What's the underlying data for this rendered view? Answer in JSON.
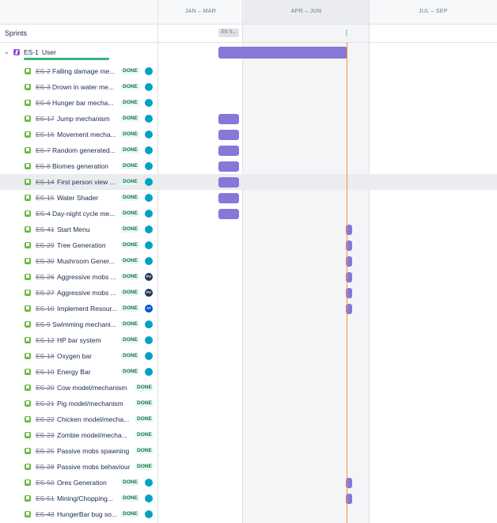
{
  "timeline": {
    "quarters": [
      "JAN – MAR",
      "APR – JUN",
      "JUL – SEP"
    ],
    "sprints_label": "Sprints",
    "sprint_chip": "ES S..."
  },
  "epic": {
    "key": "ES-1",
    "summary": "User",
    "progress_fraction": 1.0
  },
  "colors": {
    "bar": "#8777d9",
    "today_line": "#f79232",
    "story_icon": "#63ba3c",
    "epic_icon": "#904ee2",
    "done_badge_text": "#216e4e",
    "done_badge_bg": "#e3fcef"
  },
  "issues": [
    {
      "key": "ES-2",
      "summary": "Falling damage me...",
      "status": "DONE",
      "avatar": {
        "icon": "user-icon",
        "initials": "",
        "color": "#00a3bf"
      },
      "bar": null
    },
    {
      "key": "ES-3",
      "summary": "Drown in water me...",
      "status": "DONE",
      "avatar": {
        "icon": "user-icon",
        "initials": "",
        "color": "#00a3bf"
      },
      "bar": null
    },
    {
      "key": "ES-6",
      "summary": "Hunger bar mecha...",
      "status": "DONE",
      "avatar": {
        "icon": "user-icon",
        "initials": "",
        "color": "#00a3bf"
      },
      "bar": null
    },
    {
      "key": "ES-17",
      "summary": "Jump mechanism",
      "status": "DONE",
      "avatar": {
        "icon": "user-icon",
        "initials": "",
        "color": "#00a3bf"
      },
      "bar": "jan"
    },
    {
      "key": "ES-16",
      "summary": "Movement mecha...",
      "status": "DONE",
      "avatar": {
        "icon": "user-icon",
        "initials": "",
        "color": "#00a3bf"
      },
      "bar": "jan"
    },
    {
      "key": "ES-7",
      "summary": "Random generated...",
      "status": "DONE",
      "avatar": {
        "icon": "user-icon",
        "initials": "",
        "color": "#00a3bf"
      },
      "bar": "jan"
    },
    {
      "key": "ES-8",
      "summary": "Biomes generation",
      "status": "DONE",
      "avatar": {
        "icon": "user-icon",
        "initials": "",
        "color": "#00a3bf"
      },
      "bar": "jan"
    },
    {
      "key": "ES-14",
      "summary": "First person view ...",
      "status": "DONE",
      "avatar": {
        "icon": "user-icon",
        "initials": "",
        "color": "#00a3bf"
      },
      "bar": "jan",
      "highlight": true
    },
    {
      "key": "ES-15",
      "summary": "Water Shader",
      "status": "DONE",
      "avatar": {
        "icon": "user-icon",
        "initials": "",
        "color": "#00a3bf"
      },
      "bar": "jan"
    },
    {
      "key": "ES-4",
      "summary": "Day-night cycle me...",
      "status": "DONE",
      "avatar": {
        "icon": "user-icon",
        "initials": "",
        "color": "#00a3bf"
      },
      "bar": "jan"
    },
    {
      "key": "ES-41",
      "summary": "Start Menu",
      "status": "DONE",
      "avatar": {
        "icon": "user-icon",
        "initials": "",
        "color": "#00a3bf"
      },
      "bar": "jun"
    },
    {
      "key": "ES-29",
      "summary": "Tree Generation",
      "status": "DONE",
      "avatar": {
        "icon": "user-icon",
        "initials": "",
        "color": "#00a3bf"
      },
      "bar": "jun"
    },
    {
      "key": "ES-30",
      "summary": "Mushroom Gener...",
      "status": "DONE",
      "avatar": {
        "icon": "user-icon",
        "initials": "",
        "color": "#00a3bf"
      },
      "bar": "jun"
    },
    {
      "key": "ES-26",
      "summary": "Aggressive mobs ...",
      "status": "DONE",
      "avatar": {
        "icon": "user-icon",
        "initials": "PV",
        "color": "#253858"
      },
      "bar": "jun"
    },
    {
      "key": "ES-27",
      "summary": "Aggressive mobs ...",
      "status": "DONE",
      "avatar": {
        "icon": "user-icon",
        "initials": "PV",
        "color": "#253858"
      },
      "bar": "jun"
    },
    {
      "key": "ES-10",
      "summary": "Implement Resour...",
      "status": "DONE",
      "avatar": {
        "icon": "user-icon",
        "initials": "AT",
        "color": "#0052cc"
      },
      "bar": "jun"
    },
    {
      "key": "ES-9",
      "summary": "Swimming mechani...",
      "status": "DONE",
      "avatar": {
        "icon": "user-icon",
        "initials": "",
        "color": "#00a3bf"
      },
      "bar": null
    },
    {
      "key": "ES-12",
      "summary": "HP bar system",
      "status": "DONE",
      "avatar": {
        "icon": "user-icon",
        "initials": "",
        "color": "#00a3bf"
      },
      "bar": null
    },
    {
      "key": "ES-18",
      "summary": "Oxygen bar",
      "status": "DONE",
      "avatar": {
        "icon": "user-icon",
        "initials": "",
        "color": "#00a3bf"
      },
      "bar": null
    },
    {
      "key": "ES-19",
      "summary": "Energy Bar",
      "status": "DONE",
      "avatar": {
        "icon": "user-icon",
        "initials": "",
        "color": "#00a3bf"
      },
      "bar": null
    },
    {
      "key": "ES-20",
      "summary": "Cow model/mechanism",
      "status": "DONE",
      "avatar": null,
      "bar": null
    },
    {
      "key": "ES-21",
      "summary": "Pig model/mechanism",
      "status": "DONE",
      "avatar": null,
      "bar": null
    },
    {
      "key": "ES-22",
      "summary": "Chicken model/mecha...",
      "status": "DONE",
      "avatar": null,
      "bar": null
    },
    {
      "key": "ES-23",
      "summary": "Zombie model/mecha...",
      "status": "DONE",
      "avatar": null,
      "bar": null
    },
    {
      "key": "ES-25",
      "summary": "Passive mobs spawning",
      "status": "DONE",
      "avatar": null,
      "bar": null
    },
    {
      "key": "ES-28",
      "summary": "Passive mobs behaviour",
      "status": "DONE",
      "avatar": null,
      "bar": null
    },
    {
      "key": "ES-50",
      "summary": "Ores Generation",
      "status": "DONE",
      "avatar": {
        "icon": "user-icon",
        "initials": "",
        "color": "#00a3bf"
      },
      "bar": "jun"
    },
    {
      "key": "ES-51",
      "summary": "Mining/Chopping...",
      "status": "DONE",
      "avatar": {
        "icon": "user-icon",
        "initials": "",
        "color": "#00a3bf"
      },
      "bar": "jun"
    },
    {
      "key": "ES-43",
      "summary": "HungerBar bug so...",
      "status": "DONE",
      "avatar": {
        "icon": "user-icon",
        "initials": "",
        "color": "#00a3bf"
      },
      "bar": null
    }
  ]
}
